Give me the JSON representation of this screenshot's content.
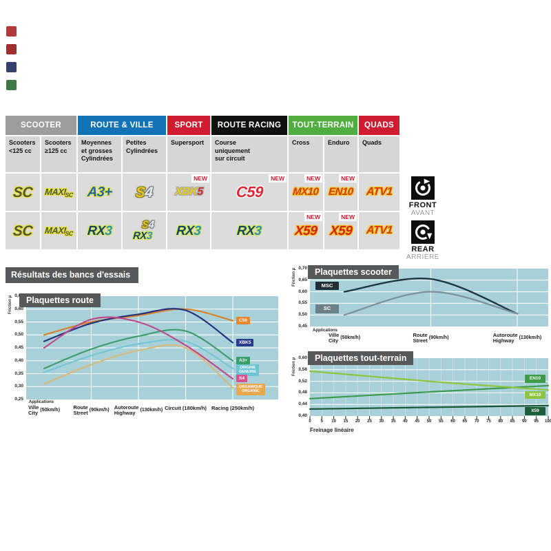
{
  "page": {
    "results_title": "Résultats des bancs d'essais"
  },
  "left_markers": [
    {
      "name": "thumb-1",
      "color": "#b23a3a"
    },
    {
      "name": "thumb-2",
      "color": "#a03030"
    },
    {
      "name": "thumb-3",
      "color": "#34406e"
    },
    {
      "name": "thumb-4",
      "color": "#3f7a46"
    }
  ],
  "table": {
    "new_label": "NEW",
    "groups": [
      {
        "label": "SCOOTER",
        "color": "#9d9d9d",
        "span": 2
      },
      {
        "label": "ROUTE & VILLE",
        "color": "#1173b5",
        "span": 2
      },
      {
        "label": "SPORT",
        "color": "#d01c30",
        "span": 1
      },
      {
        "label": "ROUTE RACING",
        "color": "#101010",
        "span": 1
      },
      {
        "label": "TOUT-TERRAIN",
        "color": "#4fae3d",
        "span": 2
      },
      {
        "label": "QUADS",
        "color": "#d01c30",
        "span": 1
      }
    ],
    "columns": [
      {
        "lines": [
          "Scooters",
          "<125 cc"
        ]
      },
      {
        "lines": [
          "Scooters",
          "≥125 cc"
        ]
      },
      {
        "lines": [
          "Moyennes",
          "et grosses",
          "Cylindrées"
        ]
      },
      {
        "lines": [
          "Petites",
          "Cylindrées"
        ]
      },
      {
        "lines": [
          "Supersport"
        ]
      },
      {
        "lines": [
          "Course",
          "uniquement",
          "sur circuit"
        ]
      },
      {
        "lines": [
          "Cross"
        ]
      },
      {
        "lines": [
          "Enduro"
        ]
      },
      {
        "lines": [
          "Quads"
        ]
      }
    ],
    "rows": [
      {
        "side": "front",
        "cells": [
          {
            "badges": [
              "sc"
            ],
            "new": false
          },
          {
            "badges": [
              "maxisc"
            ],
            "new": false
          },
          {
            "badges": [
              "a3plus"
            ],
            "new": false
          },
          {
            "badges": [
              "s4"
            ],
            "new": false
          },
          {
            "badges": [
              "xbk5"
            ],
            "new": true
          },
          {
            "badges": [
              "c59"
            ],
            "new": true
          },
          {
            "badges": [
              "mx10"
            ],
            "new": true
          },
          {
            "badges": [
              "en10"
            ],
            "new": true
          },
          {
            "badges": [
              "atv1"
            ],
            "new": false
          }
        ]
      },
      {
        "side": "rear",
        "cells": [
          {
            "badges": [
              "sc"
            ],
            "new": false
          },
          {
            "badges": [
              "maxisc"
            ],
            "new": false
          },
          {
            "badges": [
              "rx3"
            ],
            "new": false
          },
          {
            "badges": [
              "s4",
              "rx3"
            ],
            "new": false
          },
          {
            "badges": [
              "rx3"
            ],
            "new": false
          },
          {
            "badges": [
              "rx3"
            ],
            "new": false
          },
          {
            "badges": [
              "x59"
            ],
            "new": true
          },
          {
            "badges": [
              "x59"
            ],
            "new": true
          },
          {
            "badges": [
              "atv1"
            ],
            "new": false
          }
        ]
      }
    ],
    "badges": {
      "sc": {
        "parts": [
          {
            "text": "SC",
            "color": "#54553f",
            "outline": "#e6e432"
          }
        ]
      },
      "maxisc": {
        "parts": [
          {
            "text": "MAXI",
            "color": "#54553f",
            "outline": "#e6e432"
          },
          {
            "text": "SC",
            "color": "#54553f",
            "outline": "#e6e432",
            "small": true
          }
        ]
      },
      "a3plus": {
        "parts": [
          {
            "text": "A3+",
            "color": "#1d64b4",
            "outline": "#e6e432"
          }
        ]
      },
      "s4": {
        "parts": [
          {
            "text": "S",
            "color": "#edc51f",
            "outline": "#7d7d28"
          },
          {
            "text": "4",
            "color": "#ececec",
            "outline": "#6b7a84"
          }
        ]
      },
      "xbk5": {
        "parts": [
          {
            "text": "XBK",
            "color": "#e7c91e",
            "outline": "#a8aeb2"
          },
          {
            "text": "5",
            "color": "#d32b2b",
            "outline": "#a8aeb2"
          }
        ]
      },
      "c59": {
        "parts": [
          {
            "text": "C59",
            "color": "#df2832",
            "outline": "#ffffff"
          }
        ]
      },
      "mx10": {
        "parts": [
          {
            "text": "MX10",
            "color": "#d53a14",
            "outline": "#f3c11c"
          }
        ]
      },
      "en10": {
        "parts": [
          {
            "text": "EN10",
            "color": "#d53a14",
            "outline": "#f3c11c"
          }
        ]
      },
      "atv1": {
        "parts": [
          {
            "text": "ATV1",
            "color": "#d53a14",
            "outline": "#f3c11c"
          }
        ]
      },
      "rx3": {
        "parts": [
          {
            "text": "RX",
            "color": "#14485f",
            "outline": "#dbe65c"
          },
          {
            "text": "3",
            "color": "#2e93b5",
            "outline": "#dbe65c"
          }
        ]
      },
      "x59": {
        "parts": [
          {
            "text": "X59",
            "color": "#d32314",
            "outline": "#f3c11c"
          }
        ]
      }
    },
    "side_labels": {
      "front": {
        "title": "FRONT",
        "subtitle": "AVANT",
        "icon": "brake-disc-icon"
      },
      "rear": {
        "title": "REAR",
        "subtitle": "ARRIÈRE",
        "icon": "brake-disc-icon"
      }
    }
  },
  "chart_data": [
    {
      "id": "route",
      "type": "line",
      "title": "Plaquettes route",
      "ylabel": "Friction µ",
      "caption": "Applications",
      "ylim": [
        0.25,
        0.65
      ],
      "ytick_step": 0.05,
      "grid": "horizontal+vertical",
      "legend_position": "right-of-line-end",
      "categories": [
        {
          "main": "Ville",
          "sub": "City",
          "speed": "(50km/h)"
        },
        {
          "main": "Route",
          "sub": "Street",
          "speed": "(90km/h)"
        },
        {
          "main": "Autoroute",
          "sub": "Highway",
          "speed": "(130km/h)"
        },
        {
          "single": "Circuit (180km/h)"
        },
        {
          "single": "Racing (250km/h)"
        }
      ],
      "series": [
        {
          "name": "C59",
          "color": "#d9832b",
          "label_bg": "#e8872c",
          "values": [
            0.5,
            0.55,
            0.575,
            0.6,
            0.555
          ]
        },
        {
          "name": "XBK5",
          "color": "#253280",
          "label_bg": "#2a3a8c",
          "values": [
            0.475,
            0.545,
            0.58,
            0.595,
            0.47
          ]
        },
        {
          "name": "A3+",
          "color": "#3f9e6e",
          "label_bg": "#3aa06a",
          "values": [
            0.37,
            0.445,
            0.495,
            0.515,
            0.4
          ]
        },
        {
          "name": "ORIGINE\nGENUINE",
          "color": "#74c6d4",
          "label_bg": "#6cc4d4",
          "values": [
            0.355,
            0.42,
            0.465,
            0.475,
            0.37
          ]
        },
        {
          "name": "ORGANIQUE\nORGANIC",
          "color": "#d9b97c",
          "label_bg": "#e8a84c",
          "values": [
            0.31,
            0.385,
            0.44,
            0.45,
            0.295
          ]
        },
        {
          "name": "S4",
          "color": "#c04a8c",
          "label_bg": "#d8508c",
          "values": [
            0.45,
            0.56,
            0.55,
            0.46,
            0.33
          ]
        }
      ]
    },
    {
      "id": "scooter",
      "type": "line",
      "title": "Plaquettes scooter",
      "ylabel": "Friction µ",
      "caption": "Applications",
      "ylim": [
        0.45,
        0.7
      ],
      "ytick_step": 0.05,
      "grid": "horizontal+vertical",
      "legend_position": "left-of-line-start",
      "categories": [
        {
          "main": "Ville",
          "sub": "City",
          "speed": "(50km/h)"
        },
        {
          "main": "Route",
          "sub": "Street",
          "speed": "(90km/h)"
        },
        {
          "main": "Autoroute",
          "sub": "Highway",
          "speed": "(130km/h)"
        }
      ],
      "series": [
        {
          "name": "MSC",
          "color": "#1d3742",
          "label_bg": "#222e35",
          "values": [
            0.6,
            0.655,
            0.505
          ]
        },
        {
          "name": "SC",
          "color": "#7d949c",
          "label_bg": "#6d7f87",
          "values": [
            0.5,
            0.6,
            0.505
          ]
        }
      ]
    },
    {
      "id": "toutterrain",
      "type": "line",
      "title": "Plaquettes tout-terrain",
      "ylabel": "Friction µ",
      "xlabel": "Freinage linéaire",
      "ylim": [
        0.4,
        0.6
      ],
      "ytick_step": 0.04,
      "xlim": [
        0,
        100
      ],
      "xtick_step": 5,
      "grid": "horizontal+vertical-stripes",
      "legend_position": "right-inside",
      "series": [
        {
          "name": "EN10",
          "color": "#3c9a4c",
          "label_bg": "#3e9c48",
          "x": [
            0,
            50,
            100
          ],
          "values": [
            0.46,
            0.483,
            0.505
          ],
          "label_value": 0.53
        },
        {
          "name": "MX10",
          "color": "#8cc63f",
          "label_bg": "#8cc63f",
          "x": [
            0,
            50,
            100
          ],
          "values": [
            0.555,
            0.52,
            0.49
          ],
          "label_value": 0.475
        },
        {
          "name": "X59",
          "color": "#1b5638",
          "label_bg": "#1d5e3a",
          "x": [
            0,
            50,
            100
          ],
          "values": [
            0.424,
            0.43,
            0.436
          ],
          "label_value": 0.418
        }
      ]
    }
  ]
}
